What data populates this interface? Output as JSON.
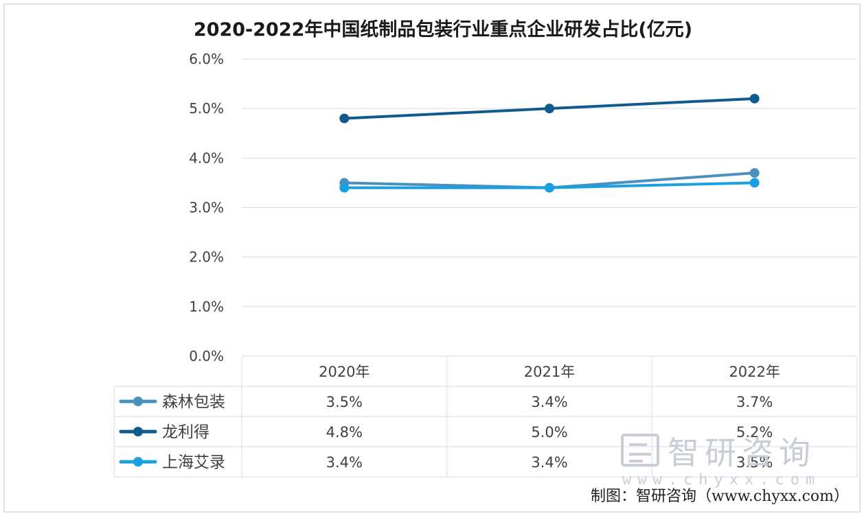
{
  "chart_data": {
    "type": "line",
    "title": "2020-2022年中国纸制品包装行业重点企业研发占比(亿元)",
    "categories": [
      "2020年",
      "2021年",
      "2022年"
    ],
    "y_ticks": [
      "0.0%",
      "1.0%",
      "2.0%",
      "3.0%",
      "4.0%",
      "5.0%",
      "6.0%"
    ],
    "ylim": [
      0,
      6
    ],
    "grid": true,
    "legend": "data-table",
    "series": [
      {
        "name": "森林包装",
        "values": [
          3.5,
          3.4,
          3.7
        ],
        "labels": [
          "3.5%",
          "3.4%",
          "3.7%"
        ],
        "color": "#4a90bf"
      },
      {
        "name": "龙利得",
        "values": [
          4.8,
          5.0,
          5.2
        ],
        "labels": [
          "4.8%",
          "5.0%",
          "5.2%"
        ],
        "color": "#0f5c8c"
      },
      {
        "name": "上海艾录",
        "values": [
          3.4,
          3.4,
          3.5
        ],
        "labels": [
          "3.4%",
          "3.4%",
          "3.5%"
        ],
        "color": "#1aa0e0"
      }
    ]
  },
  "credit": "制图：智研咨询（www.chyxx.com）",
  "watermark": {
    "brand": "智研咨询",
    "url": "www.chyxx.com"
  }
}
